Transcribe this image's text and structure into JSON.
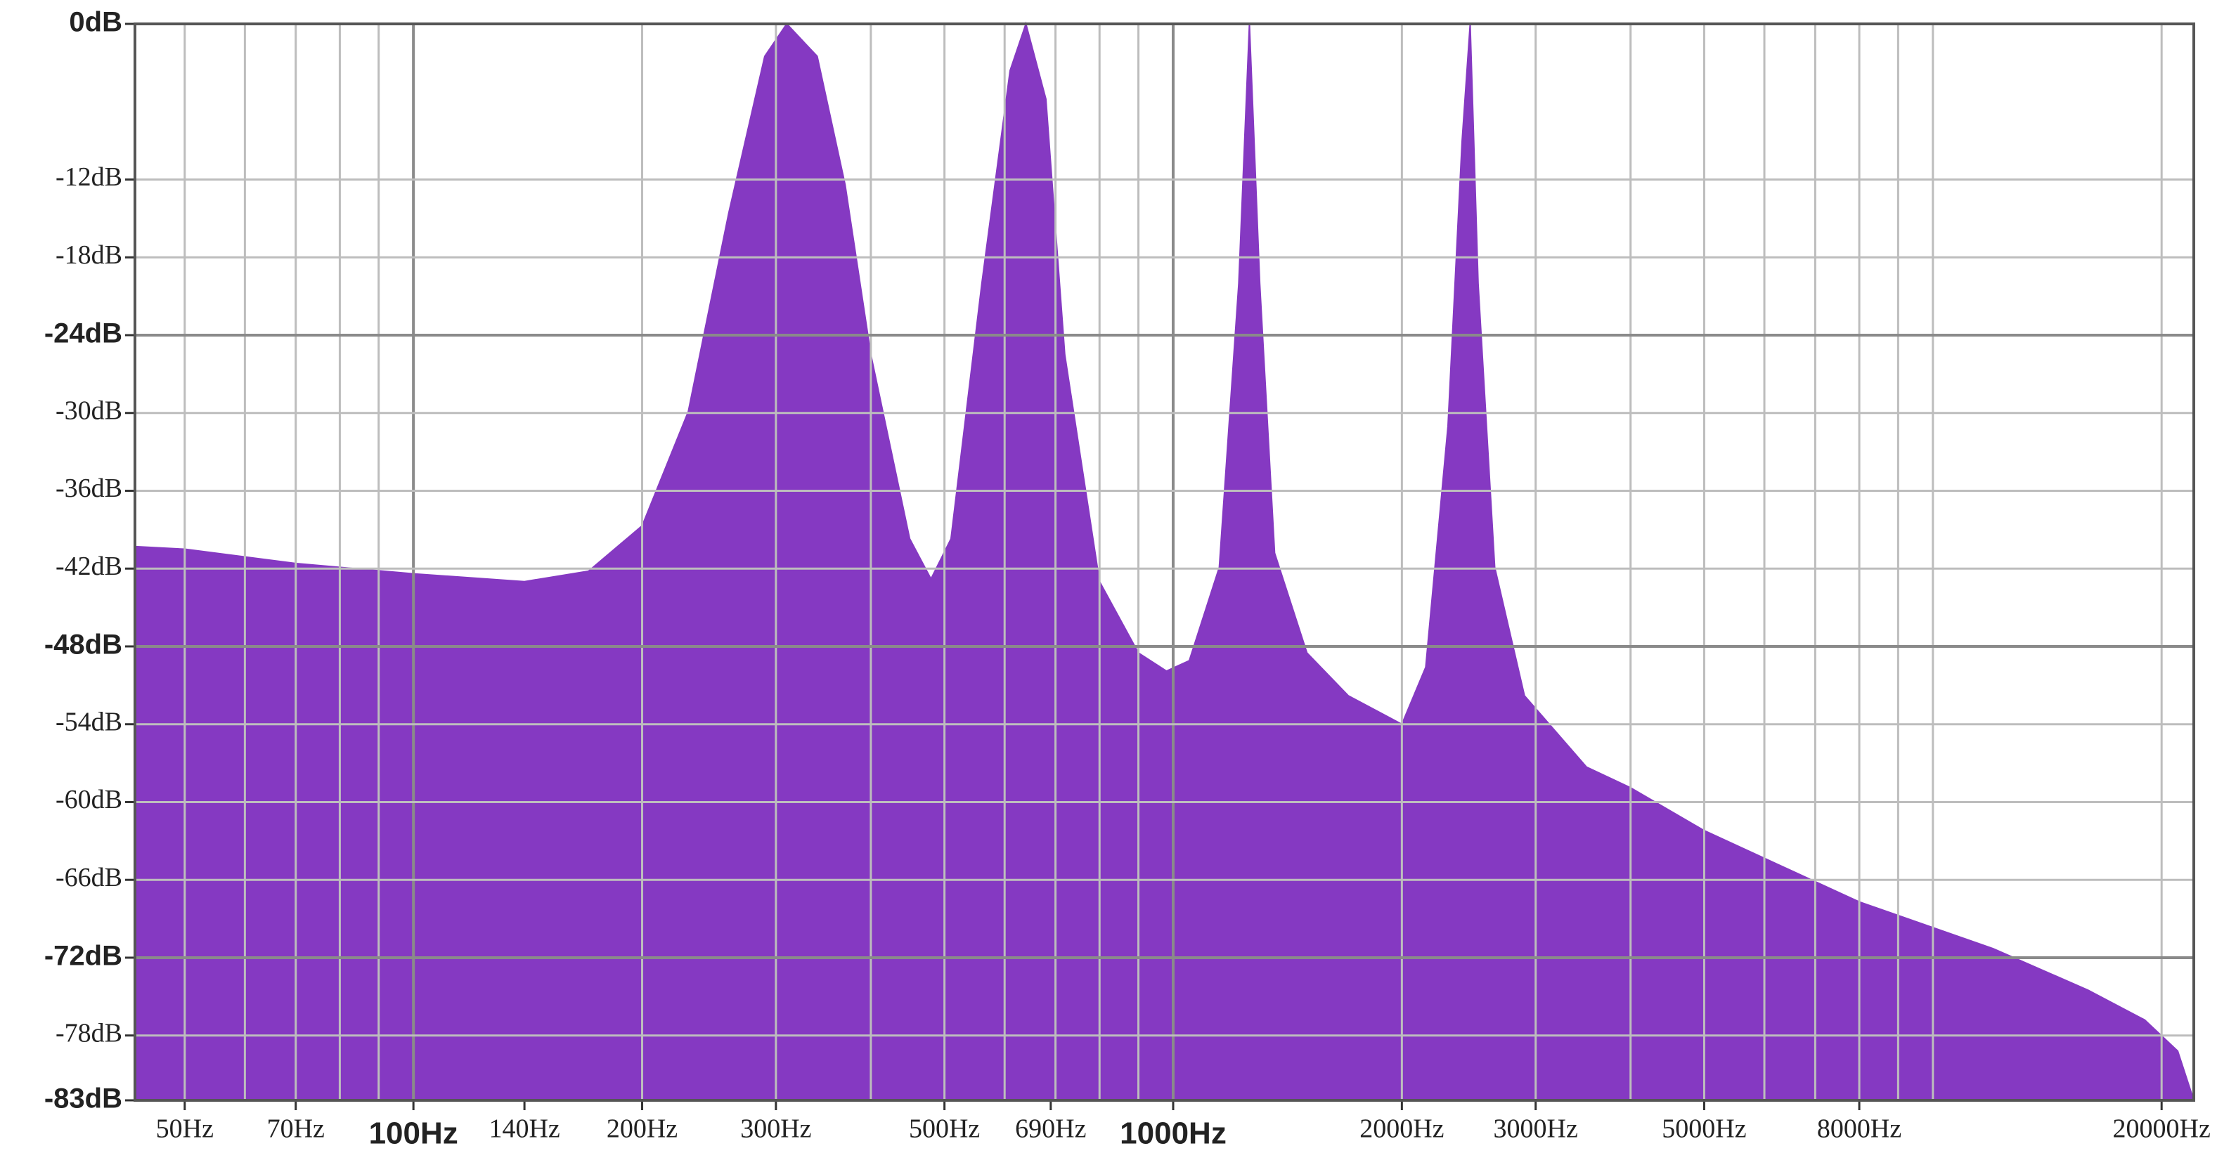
{
  "chart_data": {
    "type": "area",
    "color": "#8539c2",
    "xscale": "log",
    "grid": true,
    "xlim": [
      43,
      22050
    ],
    "ylim": [
      -83,
      0
    ],
    "x": [
      43,
      50,
      70,
      100,
      140,
      170,
      200,
      230,
      260,
      290,
      310,
      340,
      370,
      400,
      450,
      480,
      510,
      560,
      610,
      640,
      680,
      720,
      800,
      900,
      980,
      1050,
      1150,
      1220,
      1260,
      1300,
      1360,
      1500,
      1700,
      2000,
      2150,
      2300,
      2400,
      2460,
      2520,
      2650,
      2900,
      3500,
      4000,
      5000,
      8000,
      12000,
      16000,
      19000,
      21000,
      22050
    ],
    "values": [
      -40.3,
      -40.5,
      -41.6,
      -42.4,
      -43.0,
      -42.2,
      -38.7,
      -29.9,
      -14.6,
      -2.5,
      0,
      -2.5,
      -12.4,
      -25.5,
      -39.7,
      -42.8,
      -39.7,
      -20.0,
      -3.6,
      0,
      -5.8,
      -25.5,
      -43.0,
      -48.5,
      -49.9,
      -49.1,
      -41.9,
      -20.0,
      0,
      -20.0,
      -40.8,
      -48.5,
      -51.8,
      -54.0,
      -49.6,
      -31.0,
      -9.1,
      0,
      -20.0,
      -41.9,
      -51.8,
      -57.3,
      -58.9,
      -62.2,
      -67.7,
      -71.3,
      -74.5,
      -76.8,
      -79.2,
      -83
    ],
    "yticks": [
      {
        "value": 0,
        "label": "0dB",
        "major": true
      },
      {
        "value": -12,
        "label": "-12dB"
      },
      {
        "value": -18,
        "label": "-18dB"
      },
      {
        "value": -24,
        "label": "-24dB",
        "major": true
      },
      {
        "value": -30,
        "label": "-30dB"
      },
      {
        "value": -36,
        "label": "-36dB"
      },
      {
        "value": -42,
        "label": "-42dB"
      },
      {
        "value": -48,
        "label": "-48dB",
        "major": true
      },
      {
        "value": -54,
        "label": "-54dB"
      },
      {
        "value": -60,
        "label": "-60dB"
      },
      {
        "value": -66,
        "label": "-66dB"
      },
      {
        "value": -72,
        "label": "-72dB",
        "major": true
      },
      {
        "value": -78,
        "label": "-78dB"
      },
      {
        "value": -83,
        "label": "-83dB",
        "major": true
      }
    ],
    "xticks": [
      {
        "value": 50,
        "label": "50Hz"
      },
      {
        "value": 70,
        "label": "70Hz"
      },
      {
        "value": 100,
        "label": "100Hz",
        "major": true
      },
      {
        "value": 140,
        "label": "140Hz"
      },
      {
        "value": 200,
        "label": "200Hz"
      },
      {
        "value": 300,
        "label": "300Hz"
      },
      {
        "value": 500,
        "label": "500Hz"
      },
      {
        "value": 690,
        "label": "690Hz"
      },
      {
        "value": 1000,
        "label": "1000Hz",
        "major": true
      },
      {
        "value": 2000,
        "label": "2000Hz"
      },
      {
        "value": 3000,
        "label": "3000Hz"
      },
      {
        "value": 5000,
        "label": "5000Hz"
      },
      {
        "value": 8000,
        "label": "8000Hz"
      },
      {
        "value": 20000,
        "label": "20000Hz"
      }
    ],
    "xgrid": [
      50,
      60,
      70,
      80,
      90,
      100,
      200,
      300,
      400,
      500,
      600,
      700,
      800,
      900,
      1000,
      2000,
      3000,
      4000,
      5000,
      6000,
      7000,
      8000,
      9000,
      10000,
      20000
    ]
  }
}
